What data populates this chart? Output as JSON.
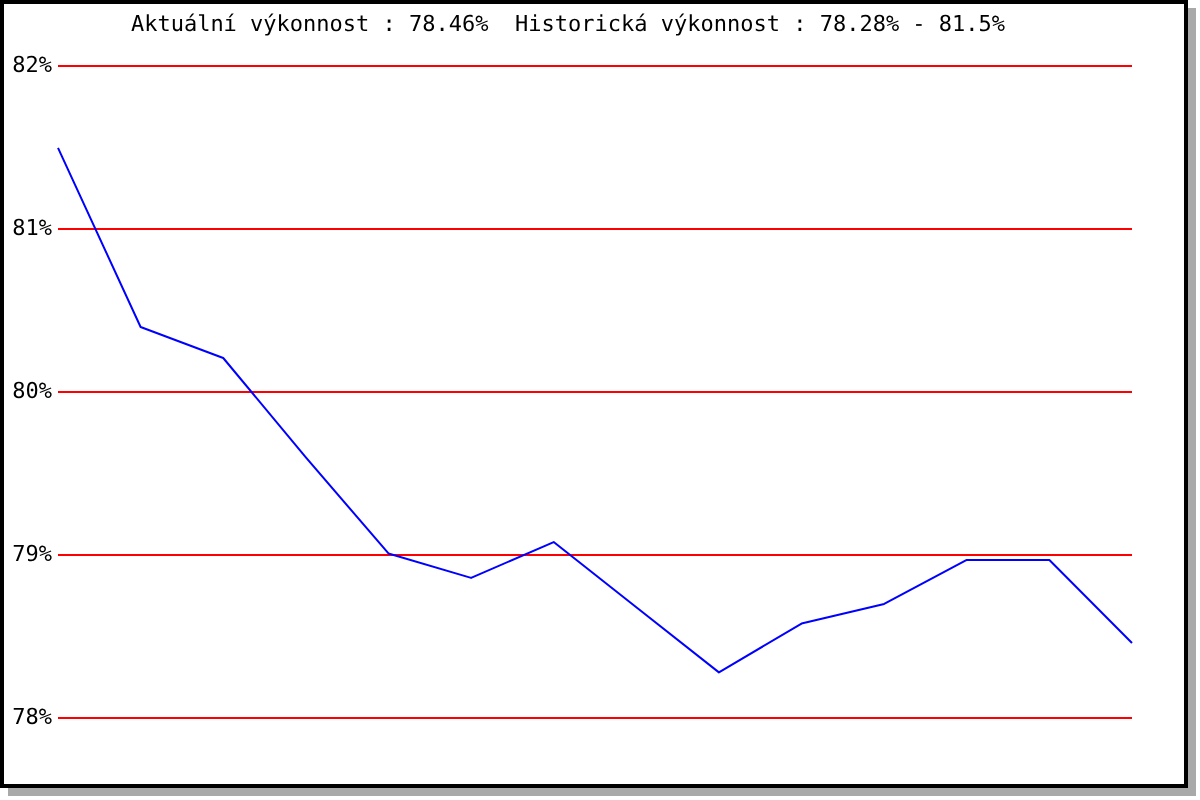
{
  "chart_data": {
    "type": "line",
    "title": "Aktuální výkonnost : 78.46%  Historická výkonnost : 78.28% - 81.5%",
    "categories": [
      null,
      null,
      null,
      null,
      null,
      null,
      null,
      null,
      null,
      null,
      null,
      null,
      null,
      null
    ],
    "series": [
      {
        "color": "#0000ff",
        "values": [
          81.5,
          80.4,
          80.21,
          79.6,
          79.01,
          78.86,
          79.08,
          78.68,
          78.28,
          78.58,
          78.7,
          78.97,
          78.97,
          78.46
        ]
      }
    ],
    "ylim": [
      78,
      82
    ],
    "yticks": [
      {
        "value": 78,
        "label": "78%"
      },
      {
        "value": 79,
        "label": "79%"
      },
      {
        "value": 80,
        "label": "80%"
      },
      {
        "value": 81,
        "label": "81%"
      },
      {
        "value": 82,
        "label": "82%"
      }
    ],
    "grid": "y",
    "legend": false,
    "tick_labels": "y",
    "marker": "none",
    "line_style": "solid"
  }
}
